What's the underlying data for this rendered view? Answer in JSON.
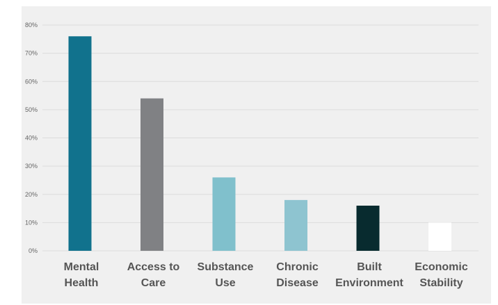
{
  "chart_data": {
    "type": "bar",
    "categories": [
      [
        "Mental",
        "Health"
      ],
      [
        "Access to",
        "Care"
      ],
      [
        "Substance",
        "Use"
      ],
      [
        "Chronic",
        "Disease"
      ],
      [
        "Built",
        "Environment"
      ],
      [
        "Economic",
        "Stability"
      ]
    ],
    "values": [
      76,
      54,
      26,
      18,
      16,
      10
    ],
    "colors": [
      "#11728d",
      "#808184",
      "#80c0cc",
      "#8ec4d0",
      "#082b2f",
      "#ffffff"
    ],
    "ylim": [
      0,
      80
    ],
    "yticks": [
      0,
      10,
      20,
      30,
      40,
      50,
      60,
      70,
      80
    ],
    "ytick_labels": [
      "0%",
      "10%",
      "20%",
      "30%",
      "40%",
      "50%",
      "60%",
      "70%",
      "80%"
    ],
    "grid": true,
    "title": "",
    "xlabel": "",
    "ylabel": ""
  }
}
